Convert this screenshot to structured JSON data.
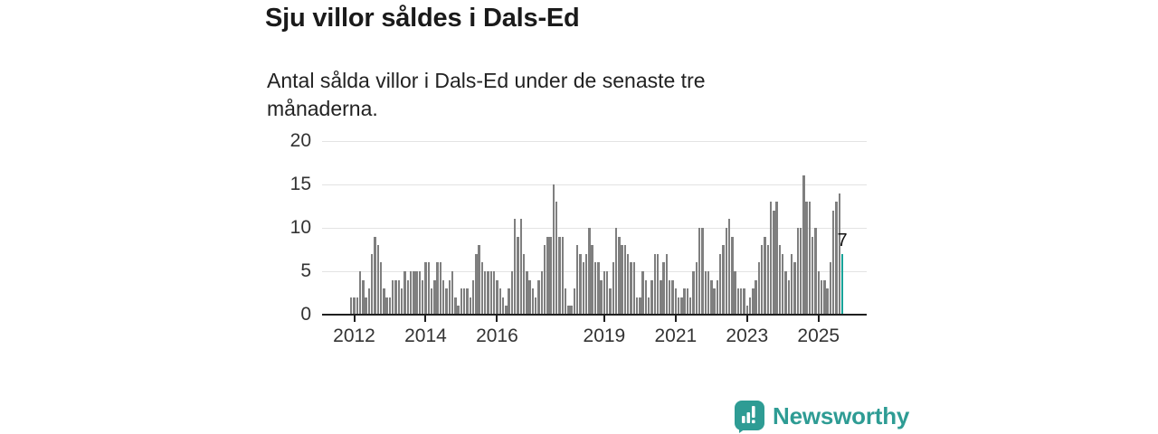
{
  "title": "Sju villor såldes i Dals-Ed",
  "subtitle": "Antal sålda villor i Dals-Ed under de senaste tre månaderna.",
  "logo": {
    "text": "Newsworthy",
    "icon": "newsworthy-speech-bubble-chart-icon",
    "color": "#2E9C94"
  },
  "chart_data": {
    "type": "bar",
    "title": "Sju villor såldes i Dals-Ed",
    "subtitle": "Antal sålda villor i Dals-Ed under de senaste tre månaderna.",
    "ylabel": "",
    "xlabel": "",
    "ylim": [
      0,
      20
    ],
    "yticks": [
      0,
      5,
      10,
      15,
      20
    ],
    "grid": true,
    "bar_color": "#7f7f7f",
    "highlight_color": "#17A398",
    "last_bar_label": "7",
    "xticks": [
      {
        "label": "2012",
        "index": 1
      },
      {
        "label": "2014",
        "index": 25
      },
      {
        "label": "2016",
        "index": 49
      },
      {
        "label": "2019",
        "index": 85
      },
      {
        "label": "2021",
        "index": 109
      },
      {
        "label": "2023",
        "index": 133
      },
      {
        "label": "2025",
        "index": 157
      }
    ],
    "values": [
      2,
      2,
      2,
      5,
      4,
      2,
      3,
      7,
      9,
      8,
      6,
      3,
      2,
      2,
      4,
      4,
      4,
      3,
      5,
      4,
      5,
      5,
      5,
      5,
      4,
      6,
      6,
      3,
      4,
      6,
      6,
      4,
      3,
      4,
      5,
      2,
      1,
      3,
      3,
      3,
      2,
      4,
      7,
      8,
      6,
      5,
      5,
      5,
      5,
      4,
      3,
      2,
      1,
      3,
      5,
      11,
      9,
      11,
      7,
      5,
      4,
      3,
      2,
      4,
      5,
      8,
      9,
      9,
      15,
      13,
      9,
      9,
      3,
      1,
      1,
      3,
      8,
      7,
      6,
      7,
      10,
      8,
      6,
      6,
      4,
      5,
      5,
      3,
      6,
      10,
      9,
      8,
      8,
      7,
      6,
      6,
      2,
      2,
      5,
      4,
      2,
      4,
      7,
      7,
      4,
      6,
      7,
      4,
      4,
      3,
      2,
      2,
      3,
      3,
      2,
      5,
      6,
      10,
      10,
      5,
      5,
      4,
      3,
      4,
      7,
      8,
      10,
      11,
      9,
      5,
      3,
      3,
      3,
      1,
      2,
      3,
      4,
      6,
      8,
      9,
      8,
      13,
      12,
      13,
      8,
      7,
      5,
      4,
      7,
      6,
      10,
      10,
      16,
      13,
      13,
      9,
      10,
      5,
      4,
      4,
      3,
      6,
      12,
      13,
      14,
      7
    ]
  }
}
